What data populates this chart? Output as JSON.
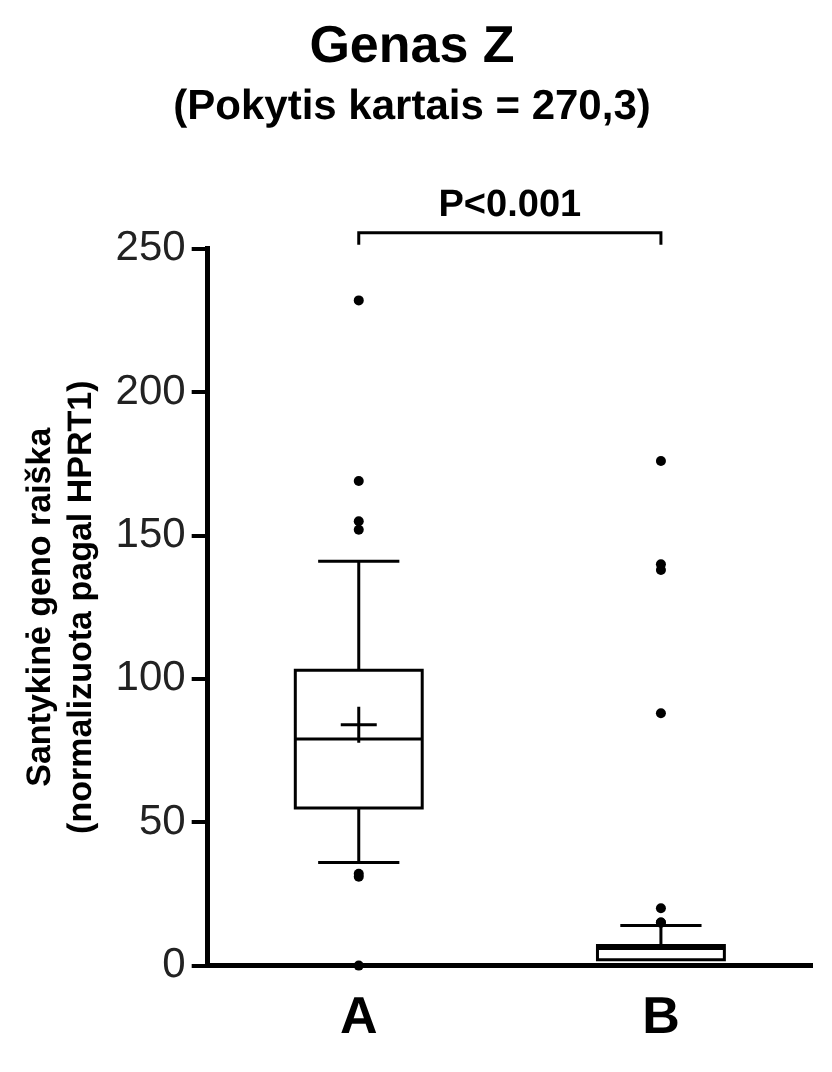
{
  "chart_data": {
    "type": "box",
    "title": "Genas Z",
    "subtitle": "(Pokytis kartais = 270,3)",
    "ylabel": "Santykinė geno raiška\n(normalizuota pagal HPRT1)",
    "categories": [
      "A",
      "B"
    ],
    "boxes": [
      {
        "low": 36,
        "q1": 55,
        "median": 79,
        "q3": 103,
        "high": 141,
        "mean": 84,
        "outliers": [
          232,
          169,
          155,
          152,
          32,
          31,
          0
        ]
      },
      {
        "low": 2,
        "q1": 2,
        "median": 6,
        "q3": 7,
        "high": 14,
        "outliers": [
          176,
          140,
          138,
          88,
          20,
          15,
          15
        ]
      }
    ],
    "color": "#000000",
    "ylim": [
      0,
      250
    ],
    "yticks": [
      0,
      50,
      100,
      150,
      200,
      250
    ],
    "grid": false,
    "legend": false,
    "annotations": [
      "P<0.001"
    ]
  }
}
